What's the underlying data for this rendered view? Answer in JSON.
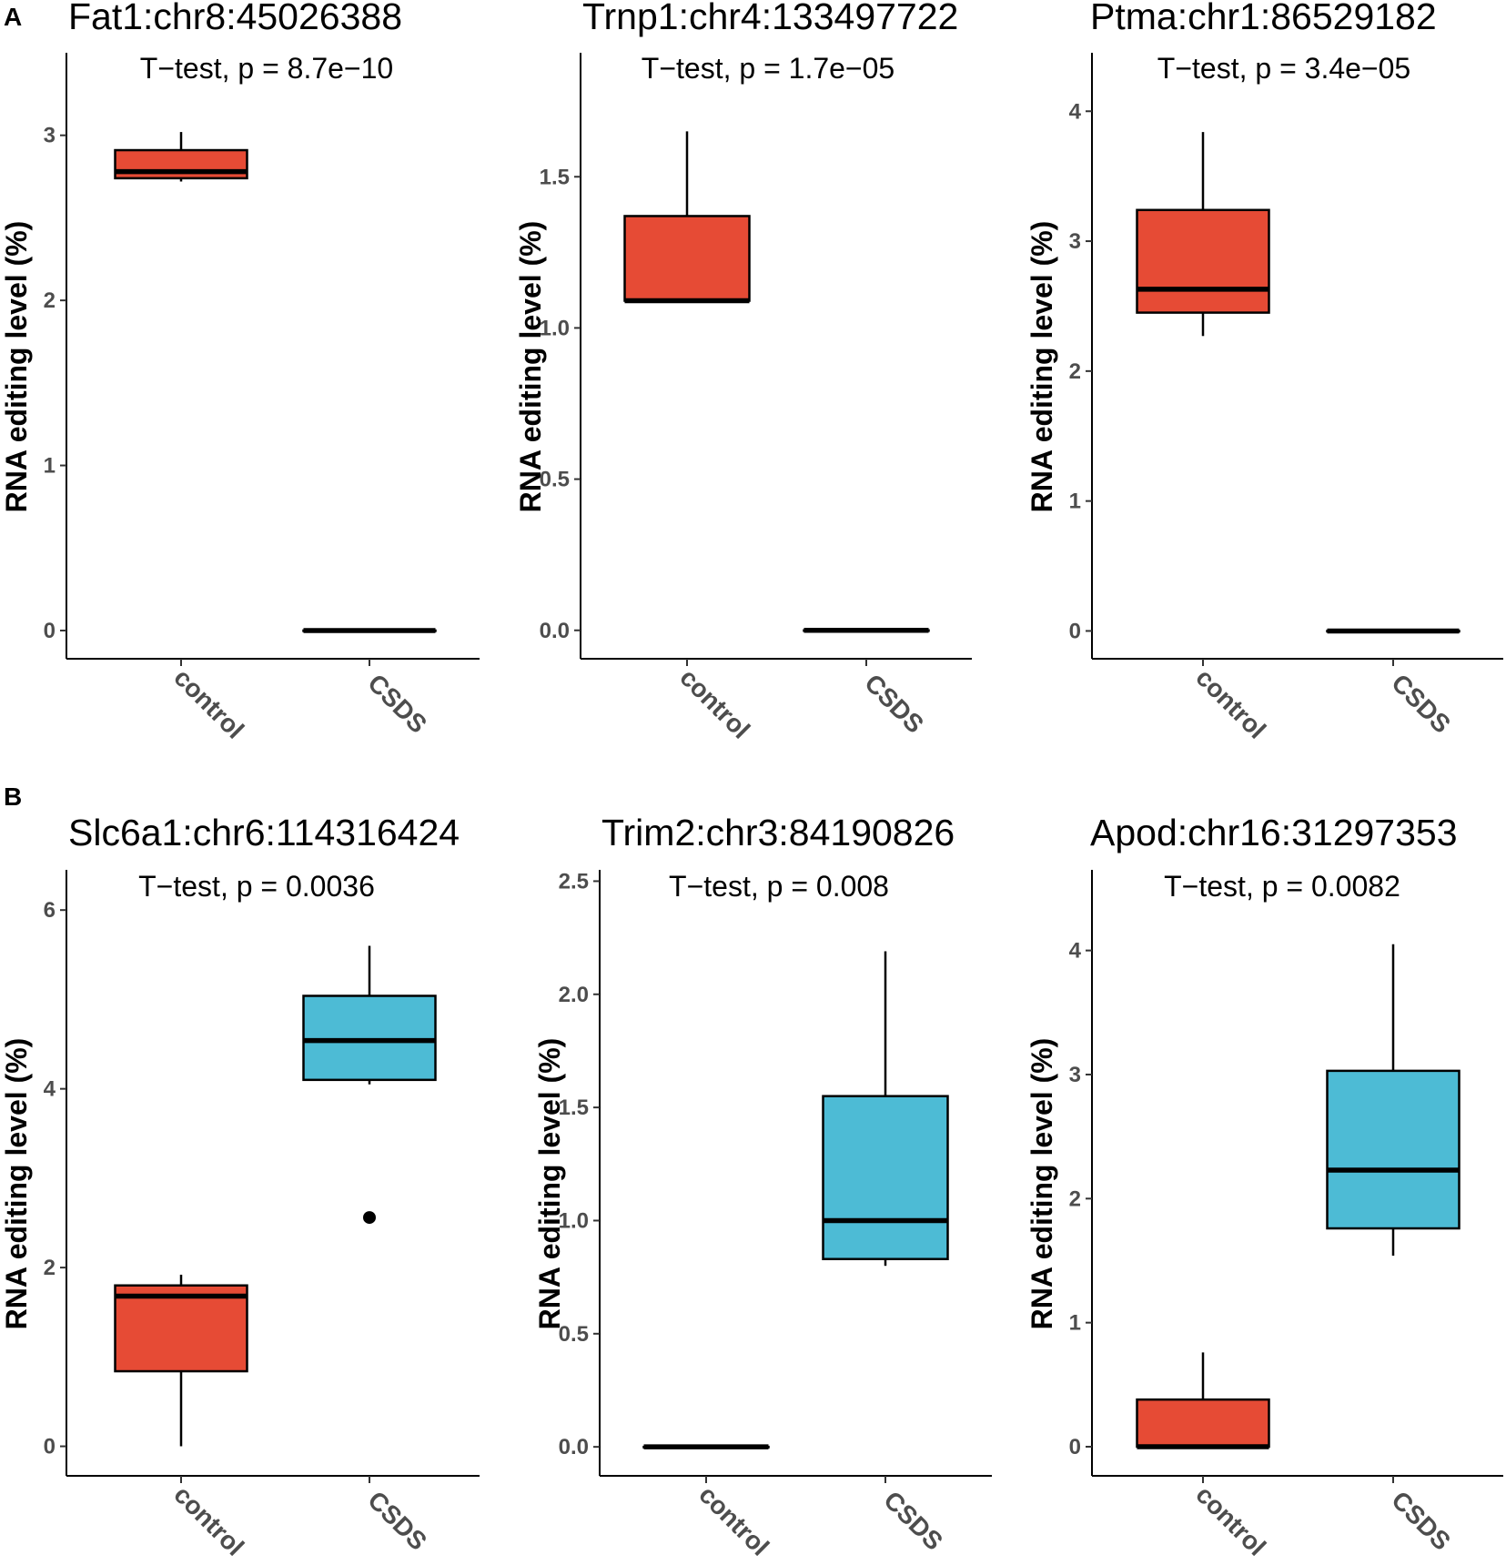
{
  "colors": {
    "control": "#E64B35",
    "CSDS": "#4DBBD5",
    "axis": "#000000",
    "tick_text": "#4d4d4d"
  },
  "chart_data": [
    {
      "panel": "A",
      "type": "box",
      "title": "Fat1:chr8:45026388",
      "test_label": "T−test, p = 8.7e−10",
      "ylabel": "RNA editing level (%)",
      "categories": [
        "control",
        "CSDS"
      ],
      "ylim": [
        -0.16,
        3.5
      ],
      "yticks": [
        {
          "value": 0,
          "label": "0"
        },
        {
          "value": 1,
          "label": "1"
        },
        {
          "value": 2,
          "label": "2"
        },
        {
          "value": 3,
          "label": "3"
        }
      ],
      "boxes": [
        {
          "group": "control",
          "whisker_low": 2.72,
          "q1": 2.74,
          "median": 2.78,
          "q3": 2.91,
          "whisker_high": 3.02,
          "outliers": []
        },
        {
          "group": "CSDS",
          "whisker_low": 0,
          "q1": 0,
          "median": 0,
          "q3": 0,
          "whisker_high": 0,
          "outliers": []
        }
      ]
    },
    {
      "panel": "",
      "type": "box",
      "title": "Trnp1:chr4:133497722",
      "test_label": "T−test, p = 1.7e−05",
      "ylabel": "RNA editing level (%)",
      "categories": [
        "control",
        "CSDS"
      ],
      "ylim": [
        -0.088,
        1.91
      ],
      "yticks": [
        {
          "value": 0,
          "label": "0.0"
        },
        {
          "value": 0.5,
          "label": "0.5"
        },
        {
          "value": 1.0,
          "label": "1.0"
        },
        {
          "value": 1.5,
          "label": "1.5"
        }
      ],
      "boxes": [
        {
          "group": "control",
          "whisker_low": 1.09,
          "q1": 1.09,
          "median": 1.09,
          "q3": 1.37,
          "whisker_high": 1.65,
          "outliers": []
        },
        {
          "group": "CSDS",
          "whisker_low": 0,
          "q1": 0,
          "median": 0,
          "q3": 0,
          "whisker_high": 0,
          "outliers": []
        }
      ]
    },
    {
      "panel": "",
      "type": "box",
      "title": "Ptma:chr1:86529182",
      "test_label": "T−test, p = 3.4e−05",
      "ylabel": "RNA editing level (%)",
      "categories": [
        "control",
        "CSDS"
      ],
      "ylim": [
        -0.2,
        4.45
      ],
      "yticks": [
        {
          "value": 0,
          "label": "0"
        },
        {
          "value": 1,
          "label": "1"
        },
        {
          "value": 2,
          "label": "2"
        },
        {
          "value": 3,
          "label": "3"
        },
        {
          "value": 4,
          "label": "4"
        }
      ],
      "boxes": [
        {
          "group": "control",
          "whisker_low": 2.27,
          "q1": 2.45,
          "median": 2.63,
          "q3": 3.24,
          "whisker_high": 3.84,
          "outliers": []
        },
        {
          "group": "CSDS",
          "whisker_low": 0,
          "q1": 0,
          "median": 0,
          "q3": 0,
          "whisker_high": 0,
          "outliers": []
        }
      ]
    },
    {
      "panel": "B",
      "type": "box",
      "title": "Slc6a1:chr6:114316424",
      "test_label": "T−test, p = 0.0036",
      "ylabel": "RNA editing level (%)",
      "categories": [
        "control",
        "CSDS"
      ],
      "ylim": [
        -0.31,
        6.45
      ],
      "yticks": [
        {
          "value": 0,
          "label": "0"
        },
        {
          "value": 2,
          "label": "2"
        },
        {
          "value": 4,
          "label": "4"
        },
        {
          "value": 6,
          "label": "6"
        }
      ],
      "boxes": [
        {
          "group": "control",
          "whisker_low": 0.0,
          "q1": 0.84,
          "median": 1.68,
          "q3": 1.8,
          "whisker_high": 1.92,
          "outliers": []
        },
        {
          "group": "CSDS",
          "whisker_low": 4.05,
          "q1": 4.1,
          "median": 4.54,
          "q3": 5.04,
          "whisker_high": 5.6,
          "outliers": [
            2.56
          ]
        }
      ]
    },
    {
      "panel": "",
      "type": "box",
      "title": "Trim2:chr3:84190826",
      "test_label": "T−test, p = 0.008",
      "ylabel": "RNA editing level (%)",
      "categories": [
        "control",
        "CSDS"
      ],
      "ylim": [
        -0.12,
        2.55
      ],
      "yticks": [
        {
          "value": 0,
          "label": "0.0"
        },
        {
          "value": 0.5,
          "label": "0.5"
        },
        {
          "value": 1.0,
          "label": "1.0"
        },
        {
          "value": 1.5,
          "label": "1.5"
        },
        {
          "value": 2.0,
          "label": "2.0"
        },
        {
          "value": 2.5,
          "label": "2.5"
        }
      ],
      "boxes": [
        {
          "group": "control",
          "whisker_low": 0,
          "q1": 0,
          "median": 0,
          "q3": 0,
          "whisker_high": 0,
          "outliers": []
        },
        {
          "group": "CSDS",
          "whisker_low": 0.8,
          "q1": 0.83,
          "median": 1.0,
          "q3": 1.55,
          "whisker_high": 2.19,
          "outliers": []
        }
      ]
    },
    {
      "panel": "",
      "type": "box",
      "title": "Apod:chr16:31297353",
      "test_label": "T−test, p = 0.0082",
      "ylabel": "RNA editing level (%)",
      "categories": [
        "control",
        "CSDS"
      ],
      "ylim": [
        -0.22,
        4.65
      ],
      "yticks": [
        {
          "value": 0,
          "label": "0"
        },
        {
          "value": 1,
          "label": "1"
        },
        {
          "value": 2,
          "label": "2"
        },
        {
          "value": 3,
          "label": "3"
        },
        {
          "value": 4,
          "label": "4"
        }
      ],
      "boxes": [
        {
          "group": "control",
          "whisker_low": 0,
          "q1": 0,
          "median": 0,
          "q3": 0.38,
          "whisker_high": 0.76,
          "outliers": []
        },
        {
          "group": "CSDS",
          "whisker_low": 1.54,
          "q1": 1.76,
          "median": 2.23,
          "q3": 3.03,
          "whisker_high": 4.05,
          "outliers": []
        }
      ]
    }
  ]
}
